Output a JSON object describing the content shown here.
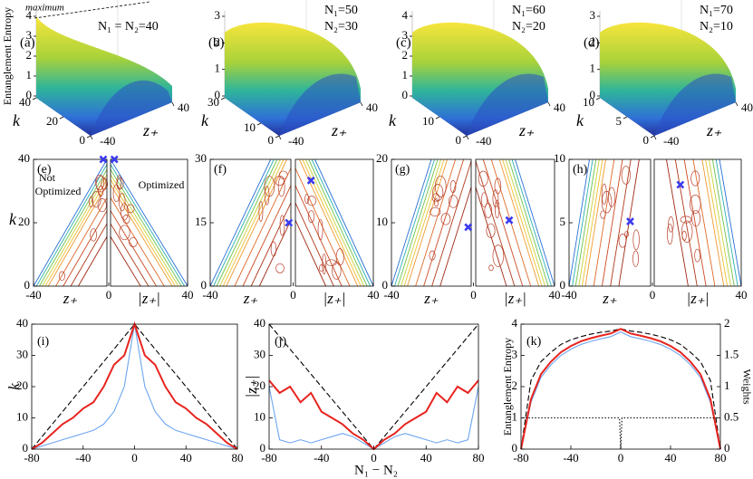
{
  "chart_data": [
    {
      "type": "surface",
      "panel": "(a)",
      "zlabel": "Entanglement Entropy",
      "note": "maximum",
      "annotation": [
        "N₁ = N₂=40"
      ],
      "zlim": [
        0,
        4
      ],
      "zticks": [
        0,
        1,
        2,
        3,
        4
      ],
      "klim": [
        0,
        40
      ],
      "kticks": [
        0,
        20,
        40
      ],
      "zplim": [
        -40,
        40
      ],
      "zpticks": [
        -40,
        40
      ],
      "xlabel": "z₊",
      "ylabel": "k"
    },
    {
      "type": "surface",
      "panel": "(b)",
      "annotation": [
        "N₁=50",
        "N₂=30"
      ],
      "zlim": [
        0,
        3
      ],
      "zticks": [
        0,
        1,
        2,
        3
      ],
      "klim": [
        0,
        30
      ],
      "kticks": [
        0,
        10,
        30
      ],
      "zplim": [
        -40,
        40
      ],
      "zpticks": [
        -40,
        40
      ],
      "xlabel": "z₊",
      "ylabel": "k"
    },
    {
      "type": "surface",
      "panel": "(c)",
      "annotation": [
        "N₁=60",
        "N₂=20"
      ],
      "zlim": [
        0,
        4
      ],
      "zticks": [
        0,
        1,
        2,
        3,
        4
      ],
      "klim": [
        0,
        20
      ],
      "kticks": [
        0,
        10
      ],
      "zplim": [
        -40,
        40
      ],
      "zpticks": [
        -40,
        40
      ],
      "xlabel": "z₊",
      "ylabel": "k"
    },
    {
      "type": "surface",
      "panel": "(d)",
      "annotation": [
        "N₁=70",
        "N₂=10"
      ],
      "zlim": [
        0,
        3
      ],
      "zticks": [
        0,
        1,
        2,
        3
      ],
      "klim": [
        0,
        10
      ],
      "kticks": [
        0,
        5,
        10
      ],
      "zplim": [
        -40,
        40
      ],
      "zpticks": [
        -40,
        40
      ],
      "xlabel": "z₊",
      "ylabel": "k"
    },
    {
      "type": "contour",
      "panel": "(e)",
      "ylabel": "k",
      "left_note": [
        "Not",
        "Optimized"
      ],
      "right_note": "Optimized",
      "ylim": [
        0,
        40
      ],
      "yticks": [
        0,
        20,
        40
      ],
      "xticks": [
        -40,
        0,
        40
      ],
      "xlabel_left": "z₊",
      "xlabel_right": "|z₊|",
      "markers": [
        {
          "x": -2,
          "y": 40
        },
        {
          "x": 2,
          "y": 40
        }
      ]
    },
    {
      "type": "contour",
      "panel": "(f)",
      "ylim": [
        0,
        30
      ],
      "yticks": [
        0,
        15,
        30
      ],
      "xticks": [
        -40,
        0,
        40
      ],
      "xlabel_left": "z₊",
      "xlabel_right": "|z₊|",
      "markers": [
        {
          "x": -1,
          "y": 15
        },
        {
          "x": 8,
          "y": 25
        }
      ]
    },
    {
      "type": "contour",
      "panel": "(g)",
      "ylim": [
        0,
        20
      ],
      "yticks": [
        0,
        10,
        20
      ],
      "xticks": [
        -40,
        0,
        40
      ],
      "xlabel_left": "z₊",
      "xlabel_right": "|z₊|",
      "markers": [
        {
          "x": -1.5,
          "y": 9.3
        },
        {
          "x": 17,
          "y": 10.4
        }
      ]
    },
    {
      "type": "contour",
      "panel": "(h)",
      "ylim": [
        0,
        10
      ],
      "yticks": [
        0,
        5,
        10
      ],
      "xticks": [
        -40,
        0,
        40
      ],
      "xlabel_left": "z₊",
      "xlabel_right": "|z₊|",
      "markers": [
        {
          "x": -10,
          "y": 5.1
        },
        {
          "x": 12,
          "y": 8
        }
      ]
    },
    {
      "type": "line",
      "panel": "(i)",
      "ylabel": "k",
      "xlim": [
        -80,
        80
      ],
      "xticks": [
        -80,
        -40,
        0,
        40,
        80
      ],
      "ylim": [
        0,
        40
      ],
      "yticks": [
        0,
        10,
        20,
        30,
        40
      ],
      "x": [
        -80,
        -72,
        -64,
        -56,
        -48,
        -40,
        -32,
        -24,
        -16,
        -8,
        0,
        8,
        16,
        24,
        32,
        40,
        48,
        56,
        64,
        72,
        80
      ],
      "series": [
        {
          "color": "#000000",
          "style": "dashed",
          "values": [
            0,
            4,
            8,
            12,
            16,
            20,
            24,
            28,
            32,
            36,
            40,
            36,
            32,
            28,
            24,
            20,
            16,
            12,
            8,
            4,
            0
          ]
        },
        {
          "color": "#6ea6f0",
          "style": "solid",
          "values": [
            0,
            1,
            2,
            3,
            4,
            5,
            6,
            8,
            12,
            20,
            40,
            20,
            12,
            8,
            6,
            5,
            4,
            3,
            2,
            1,
            0
          ]
        },
        {
          "color": "#e8231e",
          "style": "solid",
          "values": [
            0,
            2,
            5,
            8,
            10,
            13,
            15,
            20,
            27,
            30,
            40,
            30,
            27,
            20,
            15,
            13,
            10,
            8,
            5,
            2,
            0
          ]
        }
      ]
    },
    {
      "type": "line",
      "panel": "(j)",
      "ylabel": "|z₊|",
      "xlabel": "N₁ − N₂",
      "xlim": [
        -80,
        80
      ],
      "xticks": [
        -80,
        -40,
        0,
        40,
        80
      ],
      "ylim": [
        0,
        40
      ],
      "yticks": [
        0,
        10,
        20,
        30,
        40
      ],
      "x": [
        -80,
        -72,
        -64,
        -56,
        -48,
        -40,
        -32,
        -24,
        -16,
        -8,
        0,
        8,
        16,
        24,
        32,
        40,
        48,
        56,
        64,
        72,
        80
      ],
      "series": [
        {
          "color": "#000000",
          "style": "dashed",
          "values": [
            40,
            36,
            32,
            28,
            24,
            20,
            16,
            12,
            8,
            4,
            0,
            4,
            8,
            12,
            16,
            20,
            24,
            28,
            32,
            36,
            40
          ]
        },
        {
          "color": "#6ea6f0",
          "style": "solid",
          "values": [
            20,
            3,
            2,
            3,
            2,
            3,
            4,
            5,
            4,
            2,
            0,
            2,
            4,
            5,
            4,
            3,
            2,
            3,
            2,
            3,
            20
          ]
        },
        {
          "color": "#e8231e",
          "style": "solid",
          "values": [
            22,
            18,
            20,
            15,
            18,
            12,
            10,
            8,
            5,
            3,
            0,
            3,
            5,
            8,
            10,
            12,
            18,
            15,
            20,
            18,
            22
          ]
        }
      ]
    },
    {
      "type": "line",
      "panel": "(k)",
      "ylabel": "Entanglement Entropy",
      "y2label": "Weights",
      "xlim": [
        -80,
        80
      ],
      "xticks": [
        -80,
        -40,
        0,
        40,
        80
      ],
      "ylim": [
        0,
        4
      ],
      "yticks": [
        0,
        1,
        2,
        3,
        4
      ],
      "y2lim": [
        0,
        2
      ],
      "y2ticks": [
        0,
        0.5,
        1,
        1.5,
        2
      ],
      "x": [
        -80,
        -72,
        -64,
        -56,
        -48,
        -40,
        -32,
        -24,
        -16,
        -8,
        0,
        8,
        16,
        24,
        32,
        40,
        48,
        56,
        64,
        72,
        80
      ],
      "series": [
        {
          "color": "#000000",
          "style": "dashed",
          "values": [
            0,
            2.2,
            2.8,
            3.1,
            3.35,
            3.5,
            3.6,
            3.68,
            3.74,
            3.78,
            3.85,
            3.78,
            3.74,
            3.68,
            3.6,
            3.5,
            3.35,
            3.1,
            2.8,
            2.2,
            0
          ]
        },
        {
          "color": "#6ea6f0",
          "style": "solid",
          "values": [
            0,
            1.5,
            2.3,
            2.7,
            3.0,
            3.2,
            3.35,
            3.45,
            3.53,
            3.6,
            3.75,
            3.6,
            3.53,
            3.45,
            3.35,
            3.2,
            3.0,
            2.7,
            2.3,
            1.5,
            0
          ]
        },
        {
          "color": "#e8231e",
          "style": "solid",
          "values": [
            0,
            1.6,
            2.4,
            2.8,
            3.1,
            3.3,
            3.45,
            3.55,
            3.63,
            3.7,
            3.85,
            3.7,
            3.63,
            3.55,
            3.45,
            3.3,
            3.1,
            2.8,
            2.4,
            1.6,
            0
          ]
        },
        {
          "color": "#000000",
          "style": "dotted",
          "axis": "y2",
          "x": [
            -79,
            -1,
            0,
            1,
            79
          ],
          "values": [
            0.5,
            0.5,
            0,
            0.5,
            0.5
          ]
        }
      ]
    }
  ]
}
